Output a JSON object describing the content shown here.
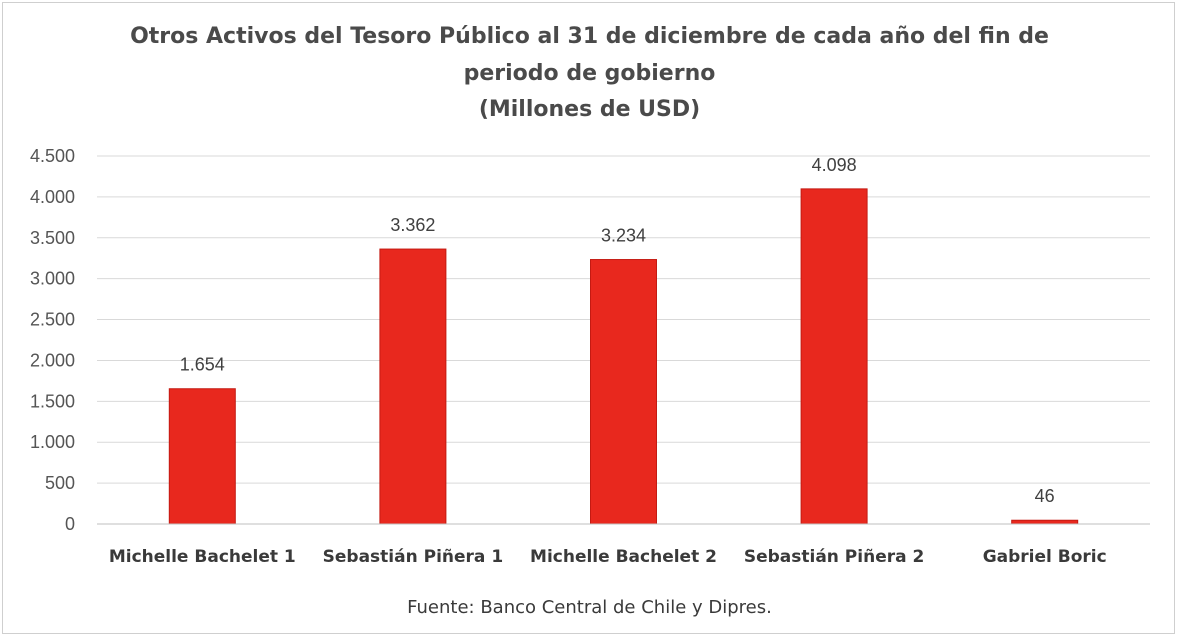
{
  "chart_data": {
    "type": "bar",
    "title_lines": [
      "Otros Activos del Tesoro Público al 31 de diciembre de cada año del fin de",
      "periodo de gobierno",
      "(Millones de USD)"
    ],
    "categories": [
      "Michelle Bachelet 1",
      "Sebastián Piñera 1",
      "Michelle Bachelet 2",
      "Sebastián Piñera 2",
      "Gabriel Boric"
    ],
    "values": [
      1654,
      3362,
      3234,
      4098,
      46
    ],
    "value_labels": [
      "1.654",
      "3.362",
      "3.234",
      "4.098",
      "46"
    ],
    "y_ticks": [
      0,
      500,
      1000,
      1500,
      2000,
      2500,
      3000,
      3500,
      4000,
      4500
    ],
    "y_tick_labels": [
      "0",
      "500",
      "1.000",
      "1.500",
      "2.000",
      "2.500",
      "3.000",
      "3.500",
      "4.000",
      "4.500"
    ],
    "ylim": [
      0,
      4500
    ],
    "grid": true,
    "bar_color": "#e8281e",
    "source": "Fuente: Banco Central de Chile y Dipres."
  }
}
